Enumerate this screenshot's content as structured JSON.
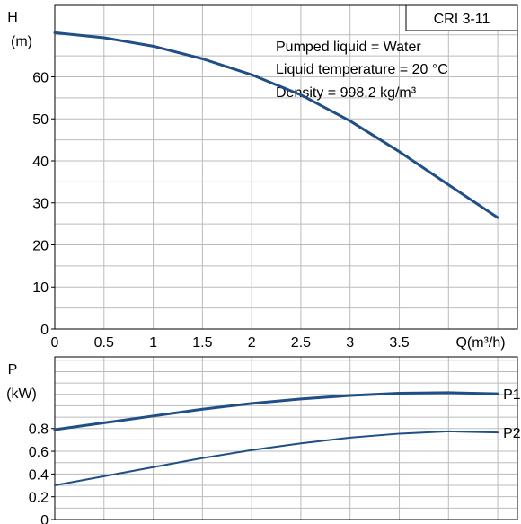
{
  "chart_data": [
    {
      "type": "line",
      "title": "CRI 3-11",
      "y_label_top": "H",
      "y_label_unit": "(m)",
      "x_label": "Q(m³/h)",
      "x_ticks": [
        "0",
        "0.5",
        "1",
        "1.5",
        "2",
        "2.5",
        "3",
        "3.5"
      ],
      "y_ticks": [
        "0",
        "10",
        "20",
        "30",
        "40",
        "50",
        "60"
      ],
      "annotations": [
        "Pumped liquid = Water",
        "Liquid temperature = 20 °C",
        "Density = 998.2 kg/m³"
      ],
      "xlim": [
        0,
        4.7
      ],
      "ylim": [
        0,
        77
      ],
      "grid": true,
      "series": [
        {
          "x": [
            0,
            0.5,
            1,
            1.5,
            2,
            2.5,
            3,
            3.5,
            4,
            4.5
          ],
          "values": [
            70.5,
            69.3,
            67.3,
            64.3,
            60.5,
            55.7,
            49.5,
            42.2,
            34.3,
            26.5
          ]
        }
      ]
    },
    {
      "type": "line",
      "y_label_top": "P",
      "y_label_unit": "(kW)",
      "y_ticks": [
        "0",
        "0.2",
        "0.4",
        "0.6",
        "0.8"
      ],
      "xlim": [
        0,
        4.7
      ],
      "ylim": [
        0,
        1.43
      ],
      "grid": true,
      "series": [
        {
          "name": "P1",
          "x": [
            0,
            0.5,
            1,
            1.5,
            2,
            2.5,
            3,
            3.5,
            4,
            4.5
          ],
          "values": [
            0.79,
            0.85,
            0.91,
            0.97,
            1.02,
            1.06,
            1.09,
            1.11,
            1.115,
            1.105
          ]
        },
        {
          "name": "P2",
          "x": [
            0,
            0.5,
            1,
            1.5,
            2,
            2.5,
            3,
            3.5,
            4,
            4.5
          ],
          "values": [
            0.3,
            0.38,
            0.46,
            0.54,
            0.61,
            0.67,
            0.72,
            0.755,
            0.775,
            0.765
          ]
        }
      ]
    }
  ],
  "colors": {
    "curve": "#1f4f86",
    "grid": "#bbbbbb",
    "axis": "#000000"
  }
}
